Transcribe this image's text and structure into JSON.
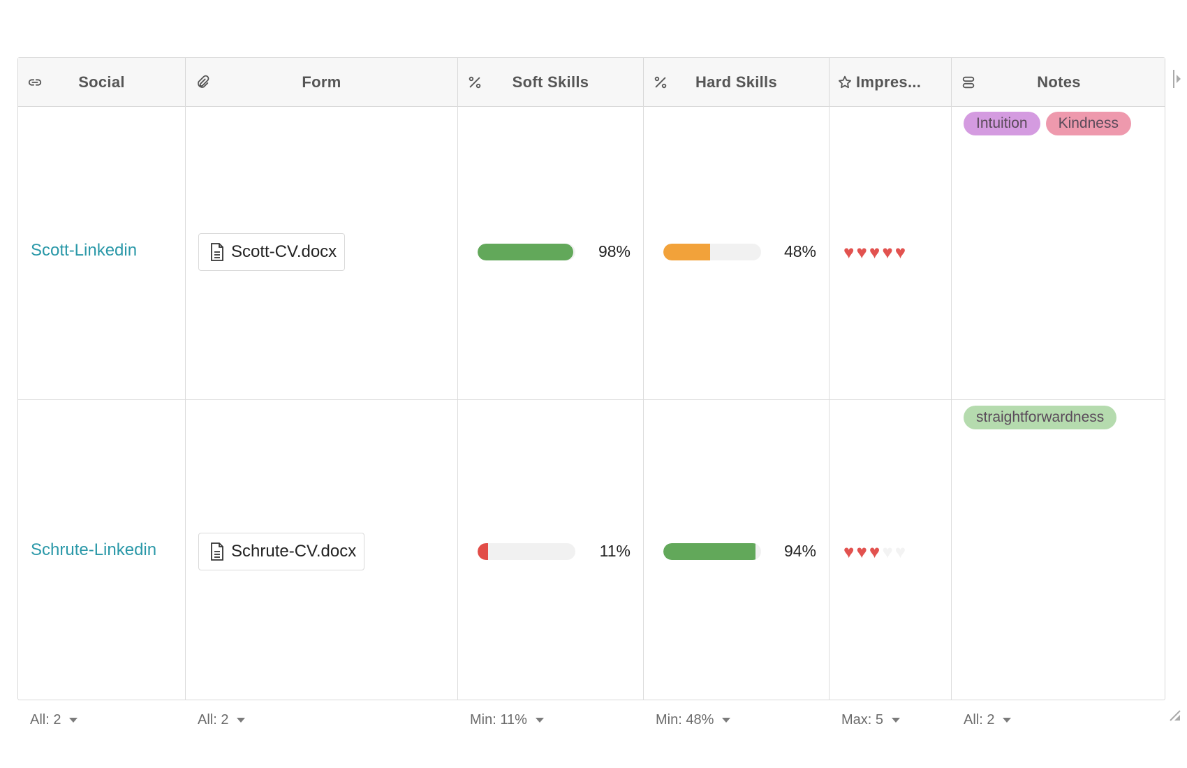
{
  "columns": [
    {
      "title": "Social",
      "icon": "link-icon"
    },
    {
      "title": "Form",
      "icon": "paperclip-icon"
    },
    {
      "title": "Soft Skills",
      "icon": "percent-icon"
    },
    {
      "title": "Hard Skills",
      "icon": "percent-icon"
    },
    {
      "title": "Impres...",
      "icon": "star-icon"
    },
    {
      "title": "Notes",
      "icon": "tags-icon"
    }
  ],
  "rows": [
    {
      "social": "Scott-Linkedin",
      "form_file": "Scott-CV.docx",
      "soft_skills": {
        "value": 0.98,
        "label": "98%"
      },
      "hard_skills": {
        "value": 0.48,
        "label": "48%"
      },
      "impression": 5,
      "notes": [
        {
          "label": "Intuition",
          "color": "#d49be0"
        },
        {
          "label": "Kindness",
          "color": "#ee99ad"
        }
      ]
    },
    {
      "social": "Schrute-Linkedin",
      "form_file": "Schrute-CV.docx",
      "soft_skills": {
        "value": 0.11,
        "label": "11%"
      },
      "hard_skills": {
        "value": 0.94,
        "label": "94%"
      },
      "impression": 3,
      "notes": [
        {
          "label": "straightforwardness",
          "color": "#b5dbae"
        }
      ]
    }
  ],
  "impression_max": 5,
  "colors": {
    "bar_green": "#62a85a",
    "bar_orange": "#f2a23a",
    "bar_red": "#e24c47",
    "heart_on": "#e2524f",
    "heart_off": "#f3f3f3",
    "link": "#2a98a8"
  },
  "footer": {
    "social": "All: 2",
    "form": "All: 2",
    "soft_skills": "Min: 11%",
    "hard_skills": "Min: 48%",
    "impression": "Max: 5",
    "notes": "All: 2"
  }
}
